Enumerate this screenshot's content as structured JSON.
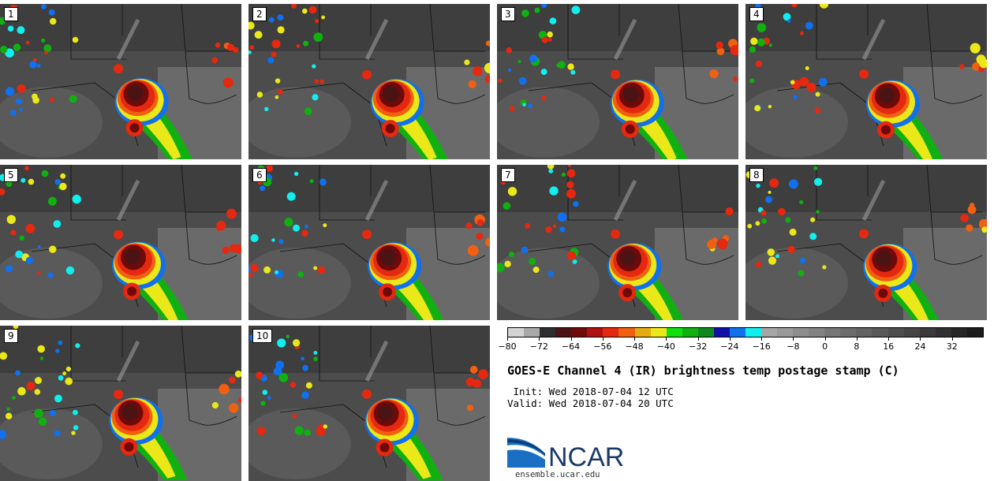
{
  "panels": [
    {
      "label": "1"
    },
    {
      "label": "2"
    },
    {
      "label": "3"
    },
    {
      "label": "4"
    },
    {
      "label": "5"
    },
    {
      "label": "6"
    },
    {
      "label": "7"
    },
    {
      "label": "8"
    },
    {
      "label": "9"
    },
    {
      "label": "10"
    }
  ],
  "colorbar": {
    "colors": [
      "#d3d3d3",
      "#a8a8a8",
      "#2e2e2e",
      "#4a1414",
      "#6e0a0a",
      "#b01010",
      "#e52810",
      "#f06010",
      "#e4ac10",
      "#eae818",
      "#10e010",
      "#10b010",
      "#108820",
      "#1010a8",
      "#1070ee",
      "#10eeee",
      "#a6a6a6",
      "#9a9a9a",
      "#8e8e8e",
      "#828282",
      "#767676",
      "#6c6c6c",
      "#626262",
      "#585858",
      "#4e4e4e",
      "#444444",
      "#3a3a3a",
      "#303030",
      "#262626",
      "#1c1c1c"
    ],
    "tick_labels": [
      "−80",
      "−72",
      "−64",
      "−56",
      "−48",
      "−40",
      "−32",
      "−24",
      "−16",
      "−8",
      "0",
      "8",
      "16",
      "24",
      "32"
    ],
    "vmin": -80,
    "vmax": 40
  },
  "title": "GOES-E Channel 4 (IR) brightness temp postage stamp (C)",
  "init": " Init: Wed 2018-07-04 12 UTC",
  "valid": "Valid: Wed 2018-07-04 20 UTC",
  "logo": {
    "text": "NCAR",
    "color": "#1b3a6b",
    "accent": "#1b6fc2"
  },
  "site": "ensemble.ucar.edu"
}
